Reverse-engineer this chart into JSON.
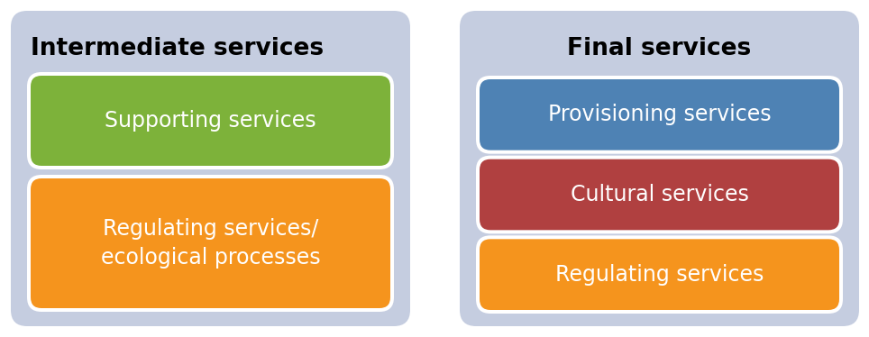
{
  "background_color": "#ffffff",
  "panel_bg_color": "#c5cde0",
  "left_panel": {
    "title": "Intermediate services",
    "title_fontsize": 19,
    "title_fontweight": "bold",
    "title_ha": "left",
    "boxes": [
      {
        "label": "Supporting services",
        "color": "#7db23a",
        "text_color": "#ffffff",
        "fontsize": 17,
        "multiline": false
      },
      {
        "label": "Regulating services/\necological processes",
        "color": "#f5941d",
        "text_color": "#ffffff",
        "fontsize": 17,
        "multiline": true
      }
    ]
  },
  "right_panel": {
    "title": "Final services",
    "title_fontsize": 19,
    "title_fontweight": "bold",
    "title_ha": "center",
    "boxes": [
      {
        "label": "Provisioning services",
        "color": "#4e82b4",
        "text_color": "#ffffff",
        "fontsize": 17,
        "multiline": false
      },
      {
        "label": "Cultural services",
        "color": "#b04040",
        "text_color": "#ffffff",
        "fontsize": 17,
        "multiline": false
      },
      {
        "label": "Regulating services",
        "color": "#f5941d",
        "text_color": "#ffffff",
        "fontsize": 17,
        "multiline": false
      }
    ]
  }
}
